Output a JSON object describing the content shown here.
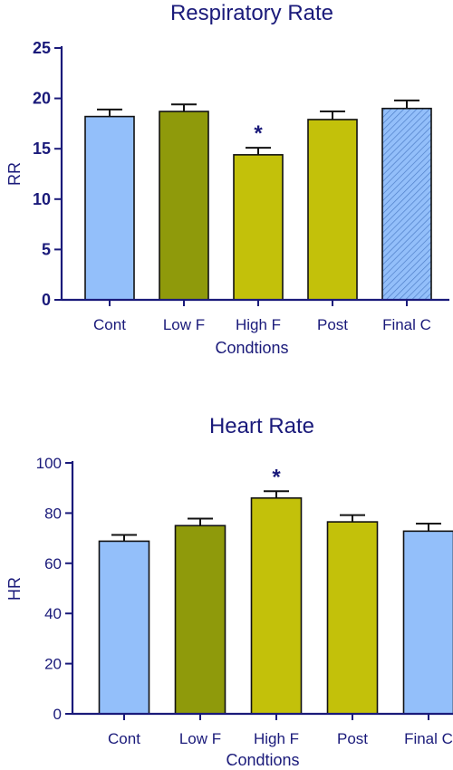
{
  "chart_data": [
    {
      "type": "bar",
      "title": "Respiratory Rate",
      "xlabel": "Condtions",
      "ylabel": "RR",
      "categories": [
        "Cont",
        "Low F",
        "High F",
        "Post",
        "Final C"
      ],
      "values": [
        18.2,
        18.7,
        14.4,
        17.9,
        19.0
      ],
      "errors": [
        0.7,
        0.7,
        0.7,
        0.8,
        0.8
      ],
      "ylim": [
        0,
        25
      ],
      "yticks": [
        0,
        5,
        10,
        15,
        20,
        25
      ],
      "ytick_labels": [
        "0",
        "5",
        "10",
        "15",
        "20",
        "25"
      ],
      "bar_colors": [
        "#93bffa",
        "#8f9a0b",
        "#c3c10a",
        "#c3c10a",
        "#93bffa"
      ],
      "bar_patterns": [
        "solid",
        "solid",
        "solid",
        "solid",
        "hatch"
      ],
      "annotations": [
        {
          "category": "High F",
          "text": "*"
        }
      ],
      "grid": false
    },
    {
      "type": "bar",
      "title": "Heart Rate",
      "xlabel": "Condtions",
      "ylabel": "HR",
      "categories": [
        "Cont",
        "Low F",
        "High F",
        "Post",
        "Final C"
      ],
      "values": [
        68.8,
        75.0,
        86.0,
        76.5,
        72.8
      ],
      "errors": [
        2.5,
        2.8,
        2.7,
        2.7,
        3.0
      ],
      "ylim": [
        0,
        100
      ],
      "yticks": [
        0,
        20,
        40,
        60,
        80,
        100
      ],
      "ytick_labels": [
        "0",
        "20",
        "40",
        "60",
        "80",
        "100"
      ],
      "bar_colors": [
        "#93bffa",
        "#8f9a0b",
        "#c3c10a",
        "#c3c10a",
        "#93bffa"
      ],
      "bar_patterns": [
        "solid",
        "solid",
        "solid",
        "solid",
        "solid"
      ],
      "annotations": [
        {
          "category": "High F",
          "text": "*"
        }
      ],
      "grid": false
    }
  ],
  "colors": {
    "axis": "#1a1a7a",
    "text": "#1a1a7a",
    "hatch": "#4f7fc8"
  }
}
